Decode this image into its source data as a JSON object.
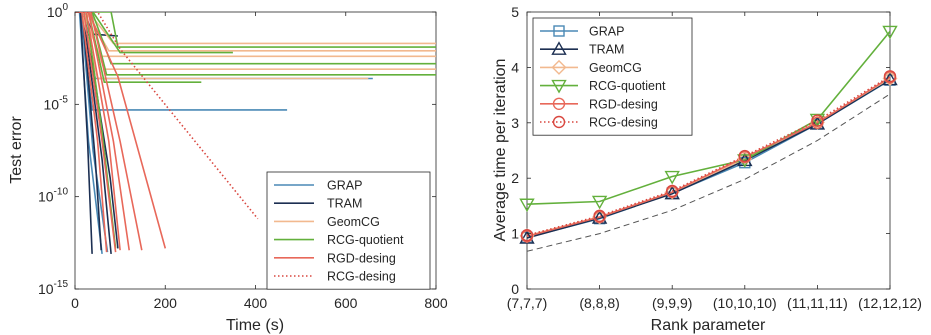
{
  "chart_data": [
    {
      "type": "line",
      "title": "",
      "xlabel": "Time (s)",
      "ylabel": "Test error",
      "xlim": [
        0,
        800
      ],
      "ylim_exponent": [
        -15,
        0
      ],
      "yscale": "log",
      "grid": false,
      "legend_position": "bottom-right",
      "xticks": [
        "0",
        "200",
        "400",
        "600",
        "800"
      ],
      "yticks": [
        {
          "base": "10",
          "exp": "0",
          "value_exp": 0
        },
        {
          "base": "10",
          "exp": "-5",
          "value_exp": -5
        },
        {
          "base": "10",
          "exp": "-10",
          "value_exp": -10
        },
        {
          "base": "10",
          "exp": "-15",
          "value_exp": -15
        }
      ],
      "series": [
        {
          "name": "GRAP",
          "color": "#4a89b5",
          "dash": "solid",
          "curves": [
            {
              "x": [
                0,
                12,
                38,
                470
              ],
              "log10_y": [
                0,
                0,
                -5.3,
                -5.3
              ]
            },
            {
              "x": [
                0,
                15,
                45,
                660
              ],
              "log10_y": [
                0,
                0,
                -3.6,
                -3.6
              ]
            },
            {
              "x": [
                0,
                10,
                30,
                60
              ],
              "log10_y": [
                0,
                0,
                -7,
                -13.1
              ]
            },
            {
              "x": [
                0,
                14,
                40,
                72
              ],
              "log10_y": [
                0,
                0,
                -7.5,
                -13
              ]
            }
          ]
        },
        {
          "name": "TRAM",
          "color": "#1c2f52",
          "dash": "solid",
          "curves": [
            {
              "x": [
                0,
                20,
                40,
                95
              ],
              "log10_y": [
                0,
                0,
                -1.2,
                -1.3
              ]
            },
            {
              "x": [
                0,
                12,
                28,
                38
              ],
              "log10_y": [
                0,
                0,
                -7,
                -13.1
              ]
            },
            {
              "x": [
                0,
                16,
                45,
                58
              ],
              "log10_y": [
                0,
                0,
                -8,
                -12.9
              ]
            },
            {
              "x": [
                0,
                18,
                60,
                80
              ],
              "log10_y": [
                0,
                0,
                -8,
                -13.1
              ]
            },
            {
              "x": [
                0,
                20,
                78,
                95
              ],
              "log10_y": [
                0,
                0,
                -9,
                -12.8
              ]
            }
          ]
        },
        {
          "name": "GeomCG",
          "color": "#f2b98f",
          "dash": "solid",
          "curves": [
            {
              "x": [
                0,
                30,
                85,
                800
              ],
              "log10_y": [
                0,
                0,
                -1.7,
                -1.7
              ]
            },
            {
              "x": [
                0,
                25,
                75,
                800
              ],
              "log10_y": [
                0,
                0,
                -2.1,
                -2.1
              ]
            },
            {
              "x": [
                0,
                20,
                65,
                800
              ],
              "log10_y": [
                0,
                0,
                -3.1,
                -3.1
              ]
            },
            {
              "x": [
                0,
                18,
                55,
                800
              ],
              "log10_y": [
                0,
                0,
                -2.4,
                -2.4
              ]
            },
            {
              "x": [
                0,
                15,
                50,
                650
              ],
              "log10_y": [
                0,
                0,
                -3.6,
                -3.6
              ]
            }
          ]
        },
        {
          "name": "RCG-quotient",
          "color": "#63b03c",
          "dash": "solid",
          "curves": [
            {
              "x": [
                0,
                80,
                95,
                800
              ],
              "log10_y": [
                0,
                0,
                -1.9,
                -1.9
              ]
            },
            {
              "x": [
                0,
                40,
                100,
                350
              ],
              "log10_y": [
                0,
                0,
                -2.2,
                -2.2
              ]
            },
            {
              "x": [
                0,
                38,
                80,
                800
              ],
              "log10_y": [
                0,
                0,
                -2.8,
                -2.8
              ]
            },
            {
              "x": [
                0,
                35,
                70,
                800
              ],
              "log10_y": [
                0,
                0,
                -3.4,
                -3.4
              ]
            },
            {
              "x": [
                0,
                30,
                65,
                280
              ],
              "log10_y": [
                0,
                0,
                -3.8,
                -3.8
              ]
            },
            {
              "x": [
                0,
                25,
                60,
                90
              ],
              "log10_y": [
                0,
                0,
                -6.5,
                -12.8
              ]
            }
          ]
        },
        {
          "name": "RGD-desing",
          "color": "#e8685a",
          "dash": "solid",
          "curves": [
            {
              "x": [
                0,
                15,
                50,
                70
              ],
              "log10_y": [
                0,
                0,
                -7,
                -13
              ]
            },
            {
              "x": [
                0,
                20,
                60,
                90
              ],
              "log10_y": [
                0,
                0,
                -7,
                -13
              ]
            },
            {
              "x": [
                0,
                25,
                75,
                100
              ],
              "log10_y": [
                0,
                0,
                -7,
                -12.9
              ]
            },
            {
              "x": [
                0,
                30,
                85,
                120
              ],
              "log10_y": [
                0,
                0,
                -7,
                -12.9
              ]
            },
            {
              "x": [
                0,
                35,
                100,
                148
              ],
              "log10_y": [
                0,
                0,
                -7,
                -12.9
              ]
            },
            {
              "x": [
                0,
                30,
                95,
                200
              ],
              "log10_y": [
                0,
                0,
                -3.5,
                -12.8
              ]
            }
          ]
        },
        {
          "name": "RCG-desing",
          "color": "#d9473f",
          "dash": "dotted",
          "curves": [
            {
              "x": [
                0,
                50,
                100,
                405
              ],
              "log10_y": [
                0,
                0,
                -2,
                -11.2
              ]
            }
          ]
        }
      ]
    },
    {
      "type": "line",
      "title": "",
      "xlabel": "Rank parameter",
      "ylabel": "Average time per iteration",
      "categories": [
        "(7,7,7)",
        "(8,8,8)",
        "(9,9,9)",
        "(10,10,10)",
        "(11,11,11)",
        "(12,12,12)"
      ],
      "ylim": [
        0,
        5
      ],
      "yticks": [
        "0",
        "1",
        "2",
        "3",
        "4",
        "5"
      ],
      "grid": false,
      "legend_position": "top-left",
      "series": [
        {
          "name": "GRAP",
          "color": "#4a89b5",
          "marker": "square",
          "dash": "solid",
          "values": [
            0.93,
            1.27,
            1.73,
            2.28,
            2.98,
            3.77
          ]
        },
        {
          "name": "TRAM",
          "color": "#1c2f52",
          "marker": "triangle-up",
          "dash": "solid",
          "values": [
            0.92,
            1.28,
            1.72,
            2.32,
            2.98,
            3.78
          ]
        },
        {
          "name": "GeomCG",
          "color": "#f2b98f",
          "marker": "diamond",
          "dash": "solid",
          "values": [
            0.96,
            1.3,
            1.75,
            2.35,
            3.01,
            3.8
          ]
        },
        {
          "name": "RCG-quotient",
          "color": "#63b03c",
          "marker": "triangle-down",
          "dash": "solid",
          "values": [
            1.53,
            1.58,
            2.03,
            2.33,
            3.06,
            4.65
          ]
        },
        {
          "name": "RGD-desing",
          "color": "#e8685a",
          "marker": "circle",
          "dash": "solid",
          "values": [
            0.95,
            1.3,
            1.75,
            2.38,
            3.0,
            3.82
          ]
        },
        {
          "name": "RCG-desing",
          "color": "#d9473f",
          "marker": "circle",
          "dash": "dotted",
          "values": [
            0.97,
            1.32,
            1.77,
            2.4,
            3.04,
            3.84
          ]
        },
        {
          "name": "",
          "color": "#555555",
          "marker": "none",
          "dash": "dashed",
          "values": [
            0.68,
            1.0,
            1.42,
            1.98,
            2.68,
            3.52
          ]
        }
      ]
    }
  ]
}
